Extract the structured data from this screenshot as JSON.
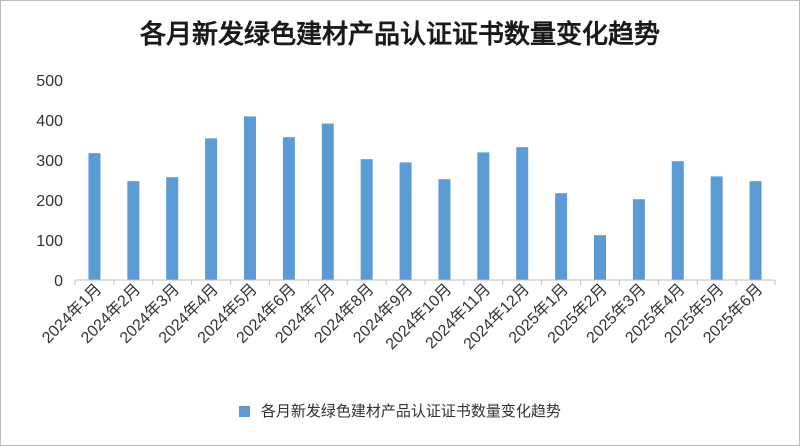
{
  "chart_data": {
    "type": "bar",
    "title": "各月新发绿色建材产品认证证书数量变化趋势",
    "categories": [
      "2024年1月",
      "2024年2月",
      "2024年3月",
      "2024年4月",
      "2024年5月",
      "2024年6月",
      "2024年7月",
      "2024年8月",
      "2024年9月",
      "2024年10月",
      "2024年11月",
      "2024年12月",
      "2025年1月",
      "2025年2月",
      "2025年3月",
      "2025年4月",
      "2025年5月",
      "2025年6月"
    ],
    "series": [
      {
        "name": "各月新发绿色建材产品认证证书数量变化趋势",
        "values": [
          317,
          247,
          257,
          354,
          409,
          357,
          391,
          302,
          294,
          252,
          319,
          332,
          217,
          112,
          202,
          297,
          259,
          247
        ],
        "color": "#5b9bd5"
      }
    ],
    "ylim": [
      0,
      500
    ],
    "yticks": [
      0,
      100,
      200,
      300,
      400,
      500
    ],
    "grid": false,
    "legend": "bottom",
    "xlabel": "",
    "ylabel": ""
  }
}
